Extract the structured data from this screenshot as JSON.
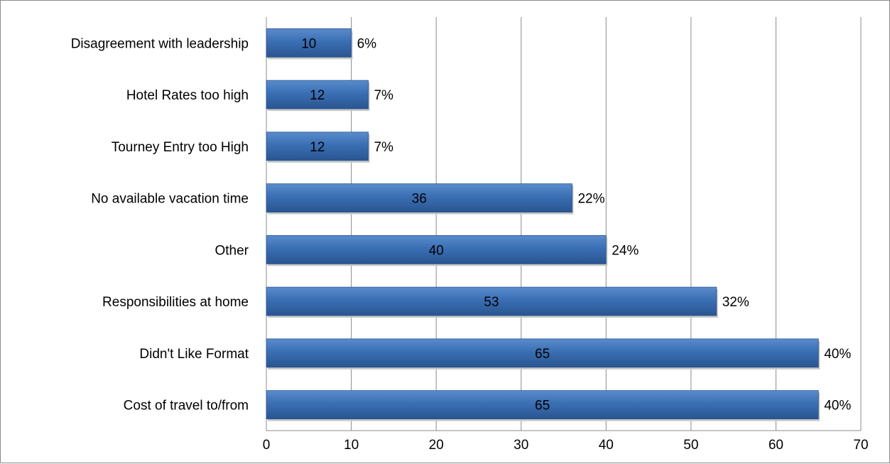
{
  "chart_data": {
    "type": "bar",
    "orientation": "horizontal",
    "categories": [
      "Disagreement with leadership",
      "Hotel Rates too high",
      "Tourney Entry too High",
      "No available vacation time",
      "Other",
      "Responsibilities at home",
      "Didn't Like Format",
      "Cost of travel to/from"
    ],
    "values": [
      10,
      12,
      12,
      36,
      40,
      53,
      65,
      65
    ],
    "percent_labels": [
      "6%",
      "7%",
      "7%",
      "22%",
      "24%",
      "32%",
      "40%",
      "40%"
    ],
    "xlim": [
      0,
      70
    ],
    "x_ticks": [
      0,
      10,
      20,
      30,
      40,
      50,
      60,
      70
    ],
    "grid": true,
    "legend": false,
    "colors": {
      "bar": "#3a6fb4",
      "bar_dark": "#2a5590",
      "bar_light": "#5a8ccc",
      "grid": "#8c8c8c"
    }
  }
}
